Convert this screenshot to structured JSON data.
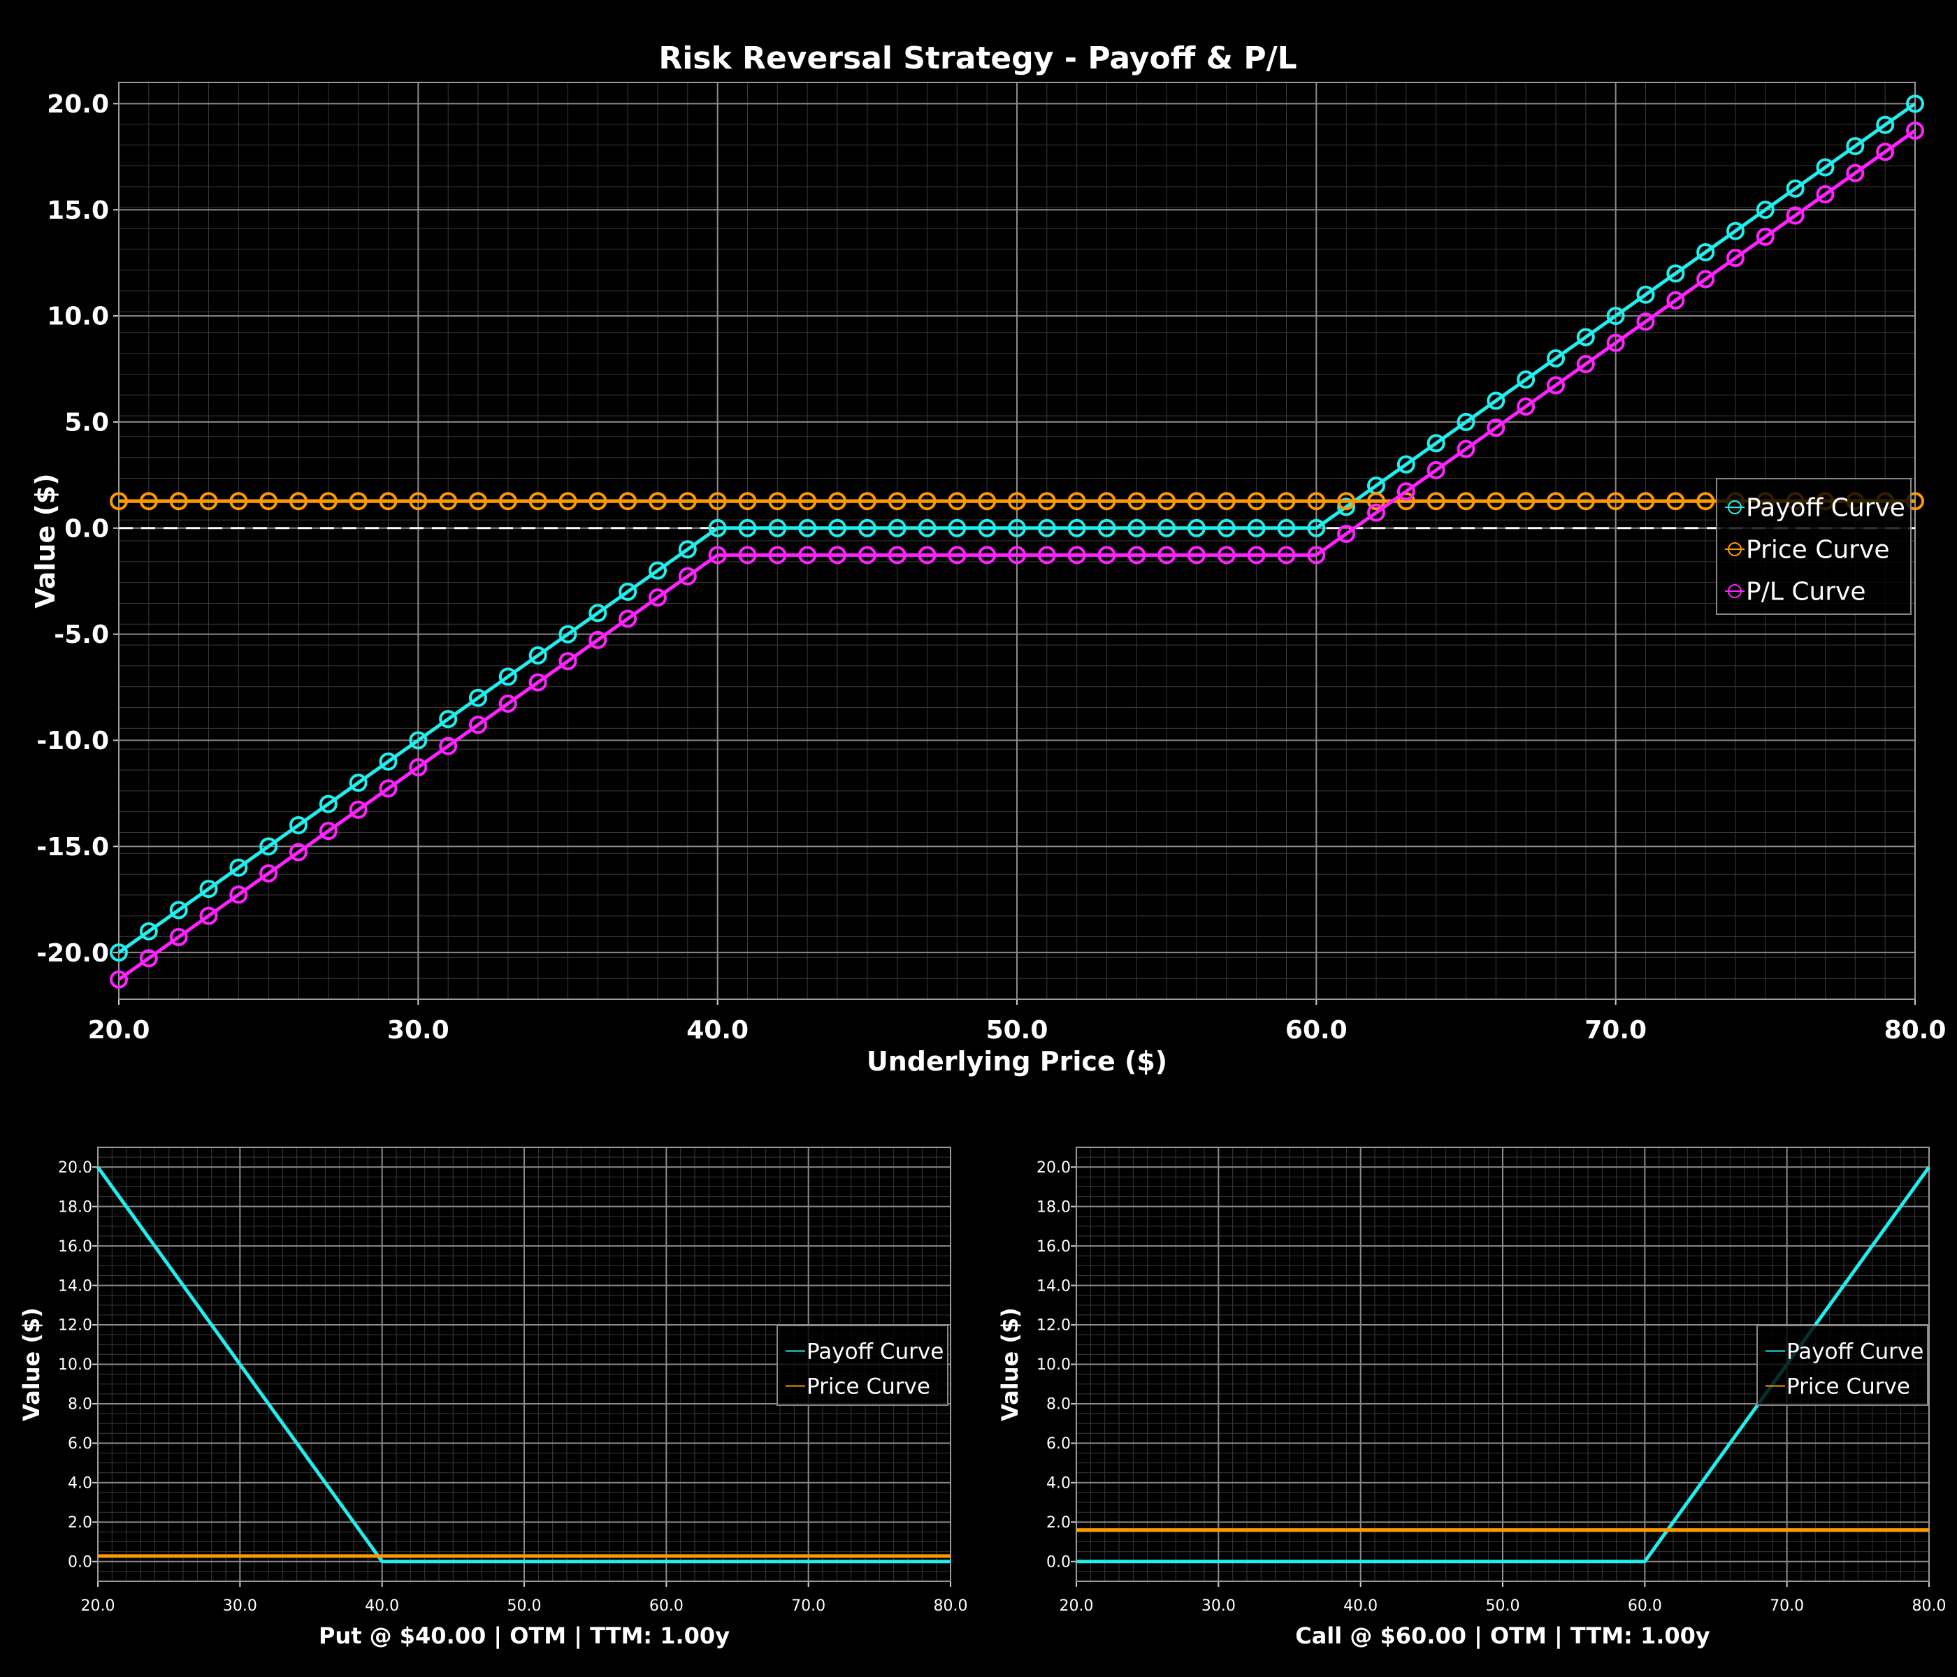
{
  "figure": {
    "background": "#000000"
  },
  "chart_data": [
    {
      "id": "main",
      "type": "line",
      "title": "Risk Reversal Strategy - Payoff & P/L",
      "xlabel": "Underlying Price ($)",
      "ylabel": "Value ($)",
      "xlim": [
        20,
        80
      ],
      "ylim": [
        -22.2,
        21.0
      ],
      "x_ticks": [
        20,
        30,
        40,
        50,
        60,
        70,
        80
      ],
      "x_tick_labels": [
        "20.0",
        "30.0",
        "40.0",
        "50.0",
        "60.0",
        "70.0",
        "80.0"
      ],
      "y_ticks": [
        -20,
        -15,
        -10,
        -5,
        0,
        5,
        10,
        15,
        20
      ],
      "y_tick_labels": [
        "-20.0",
        "-15.0",
        "-10.0",
        "-5.0",
        "0.0",
        "5.0",
        "10.0",
        "15.0",
        "20.0"
      ],
      "grid": true,
      "zero_line": true,
      "legend_position": "right",
      "x": [
        20,
        21,
        22,
        23,
        24,
        25,
        26,
        27,
        28,
        29,
        30,
        31,
        32,
        33,
        34,
        35,
        36,
        37,
        38,
        39,
        40,
        41,
        42,
        43,
        44,
        45,
        46,
        47,
        48,
        49,
        50,
        51,
        52,
        53,
        54,
        55,
        56,
        57,
        58,
        59,
        60,
        61,
        62,
        63,
        64,
        65,
        66,
        67,
        68,
        69,
        70,
        71,
        72,
        73,
        74,
        75,
        76,
        77,
        78,
        79,
        80
      ],
      "series": [
        {
          "name": "Payoff Curve",
          "color": "#22eeee",
          "markers": true,
          "values": [
            -20,
            -19,
            -18,
            -17,
            -16,
            -15,
            -14,
            -13,
            -12,
            -11,
            -10,
            -9,
            -8,
            -7,
            -6,
            -5,
            -4,
            -3,
            -2,
            -1,
            0,
            0,
            0,
            0,
            0,
            0,
            0,
            0,
            0,
            0,
            0,
            0,
            0,
            0,
            0,
            0,
            0,
            0,
            0,
            0,
            0,
            1,
            2,
            3,
            4,
            5,
            6,
            7,
            8,
            9,
            10,
            11,
            12,
            13,
            14,
            15,
            16,
            17,
            18,
            19,
            20
          ]
        },
        {
          "name": "Price Curve",
          "color": "#ff9900",
          "markers": true,
          "values": [
            1.27,
            1.27,
            1.27,
            1.27,
            1.27,
            1.27,
            1.27,
            1.27,
            1.27,
            1.27,
            1.27,
            1.27,
            1.27,
            1.27,
            1.27,
            1.27,
            1.27,
            1.27,
            1.27,
            1.27,
            1.27,
            1.27,
            1.27,
            1.27,
            1.27,
            1.27,
            1.27,
            1.27,
            1.27,
            1.27,
            1.27,
            1.27,
            1.27,
            1.27,
            1.27,
            1.27,
            1.27,
            1.27,
            1.27,
            1.27,
            1.27,
            1.27,
            1.27,
            1.27,
            1.27,
            1.27,
            1.27,
            1.27,
            1.27,
            1.27,
            1.27,
            1.27,
            1.27,
            1.27,
            1.27,
            1.27,
            1.27,
            1.27,
            1.27,
            1.27,
            1.27
          ]
        },
        {
          "name": "P/L Curve",
          "color": "#ff22ff",
          "markers": true,
          "values": [
            -21.27,
            -20.27,
            -19.27,
            -18.27,
            -17.27,
            -16.27,
            -15.27,
            -14.27,
            -13.27,
            -12.27,
            -11.27,
            -10.27,
            -9.27,
            -8.27,
            -7.27,
            -6.27,
            -5.27,
            -4.27,
            -3.27,
            -2.27,
            -1.27,
            -1.27,
            -1.27,
            -1.27,
            -1.27,
            -1.27,
            -1.27,
            -1.27,
            -1.27,
            -1.27,
            -1.27,
            -1.27,
            -1.27,
            -1.27,
            -1.27,
            -1.27,
            -1.27,
            -1.27,
            -1.27,
            -1.27,
            -1.27,
            -0.27,
            0.73,
            1.73,
            2.73,
            3.73,
            4.73,
            5.73,
            6.73,
            7.73,
            8.73,
            9.73,
            10.73,
            11.73,
            12.73,
            13.73,
            14.73,
            15.73,
            16.73,
            17.73,
            18.73
          ]
        }
      ]
    },
    {
      "id": "put",
      "type": "line",
      "title": "",
      "xlabel": "Put @ $40.00 | OTM | TTM: 1.00y",
      "ylabel": "Value ($)",
      "xlim": [
        20,
        80
      ],
      "ylim": [
        -1.0,
        21.0
      ],
      "x_ticks": [
        20,
        30,
        40,
        50,
        60,
        70,
        80
      ],
      "x_tick_labels": [
        "20.0",
        "30.0",
        "40.0",
        "50.0",
        "60.0",
        "70.0",
        "80.0"
      ],
      "y_ticks": [
        0,
        2,
        4,
        6,
        8,
        10,
        12,
        14,
        16,
        18,
        20
      ],
      "y_tick_labels": [
        "0.0",
        "2.0",
        "4.0",
        "6.0",
        "8.0",
        "10.0",
        "12.0",
        "14.0",
        "16.0",
        "18.0",
        "20.0"
      ],
      "grid": true,
      "legend_position": "right",
      "series": [
        {
          "name": "Payoff Curve",
          "color": "#22eeee",
          "x": [
            20,
            40,
            80
          ],
          "values": [
            20,
            0,
            0
          ]
        },
        {
          "name": "Price Curve",
          "color": "#ff9900",
          "x": [
            20,
            80
          ],
          "values": [
            0.28,
            0.28
          ]
        }
      ]
    },
    {
      "id": "call",
      "type": "line",
      "title": "",
      "xlabel": "Call @ $60.00 | OTM | TTM: 1.00y",
      "ylabel": "Value ($)",
      "xlim": [
        20,
        80
      ],
      "ylim": [
        -1.0,
        21.0
      ],
      "x_ticks": [
        20,
        30,
        40,
        50,
        60,
        70,
        80
      ],
      "x_tick_labels": [
        "20.0",
        "30.0",
        "40.0",
        "50.0",
        "60.0",
        "70.0",
        "80.0"
      ],
      "y_ticks": [
        0,
        2,
        4,
        6,
        8,
        10,
        12,
        14,
        16,
        18,
        20
      ],
      "y_tick_labels": [
        "0.0",
        "2.0",
        "4.0",
        "6.0",
        "8.0",
        "10.0",
        "12.0",
        "14.0",
        "16.0",
        "18.0",
        "20.0"
      ],
      "grid": true,
      "legend_position": "right",
      "series": [
        {
          "name": "Payoff Curve",
          "color": "#22eeee",
          "x": [
            20,
            60,
            80
          ],
          "values": [
            0,
            0,
            20
          ]
        },
        {
          "name": "Price Curve",
          "color": "#ff9900",
          "x": [
            20,
            80
          ],
          "values": [
            1.6,
            1.6
          ]
        }
      ]
    }
  ]
}
